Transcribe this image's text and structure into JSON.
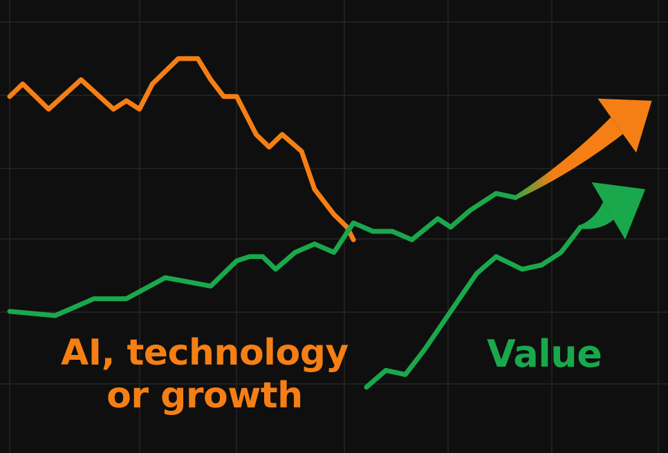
{
  "labels": {
    "growth_line1": "AI, technology",
    "growth_line2": "or growth",
    "value": "Value"
  },
  "colors": {
    "background": "#0f0f0f",
    "grid": "#262626",
    "growth": "#f57f14",
    "value": "#1aa84c"
  },
  "chart_data": {
    "type": "line",
    "title": "",
    "xlabel": "",
    "ylabel": "",
    "grid": true,
    "legend": "none",
    "xlim": [
      0,
      100
    ],
    "ylim": [
      0,
      100
    ],
    "series": [
      {
        "name": "AI, technology or growth",
        "color": "#f57f14",
        "x": [
          0,
          2,
          6,
          11,
          16,
          18,
          20,
          22,
          26,
          29,
          31,
          33,
          35,
          38,
          40,
          42,
          45,
          47,
          49,
          50,
          52,
          53
        ],
        "y": [
          82,
          85,
          79,
          86,
          79,
          81,
          79,
          85,
          91,
          91,
          86,
          82,
          82,
          73,
          70,
          73,
          69,
          60,
          56,
          54,
          51,
          48
        ]
      },
      {
        "name": "Value",
        "color": "#1aa84c",
        "x": [
          0,
          7,
          13,
          18,
          24,
          31,
          35,
          37,
          39,
          41,
          44,
          47,
          50,
          53,
          56,
          59,
          62,
          66,
          68,
          71,
          75,
          78
        ],
        "y": [
          31,
          30,
          34,
          34,
          39,
          37,
          43,
          44,
          44,
          41,
          45,
          47,
          45,
          52,
          50,
          50,
          48,
          53,
          51,
          55,
          59,
          58
        ]
      },
      {
        "name": "Value",
        "color": "#1aa84c",
        "x": [
          55,
          58,
          61,
          64,
          68,
          72,
          75,
          79,
          82,
          85,
          88
        ],
        "y": [
          13,
          17,
          16,
          22,
          31,
          40,
          44,
          41,
          42,
          45,
          51
        ]
      }
    ],
    "arrows": [
      {
        "series": "AI, technology or growth",
        "from": [
          78,
          58
        ],
        "to": [
          99,
          81
        ]
      },
      {
        "series": "Value",
        "from": [
          88,
          51
        ],
        "to": [
          98,
          60
        ]
      }
    ]
  }
}
